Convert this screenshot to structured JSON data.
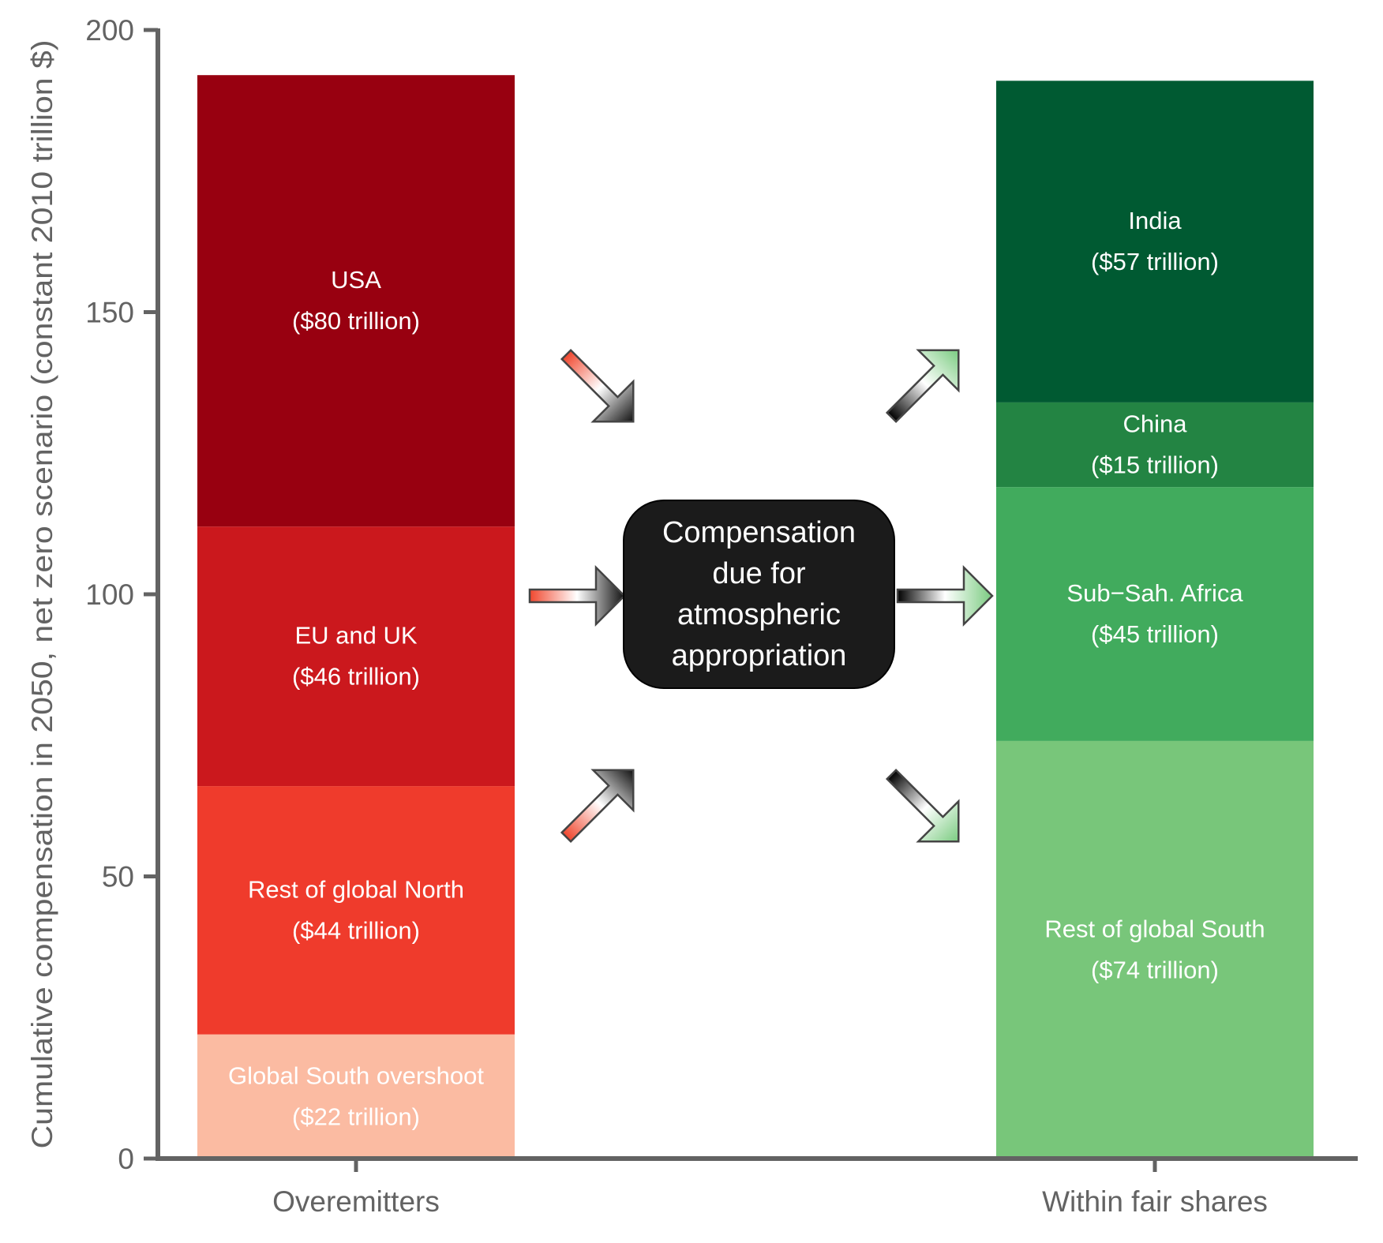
{
  "chart_data": {
    "type": "bar",
    "stacked": true,
    "ylabel": "Cumulative compensation in 2050, net zero scenario (constant 2010 trillion $)",
    "ylim": [
      0,
      200
    ],
    "yticks": [
      0,
      50,
      100,
      150,
      200
    ],
    "categories": [
      "Overemitters",
      "Within fair shares"
    ],
    "stacks": [
      {
        "category": "Overemitters",
        "segments": [
          {
            "name": "Global South overshoot",
            "value_label": "($22 trillion)",
            "value": 22,
            "color": "#fbbba2"
          },
          {
            "name": "Rest of global North",
            "value_label": "($44 trillion)",
            "value": 44,
            "color": "#ef3b2c"
          },
          {
            "name": "EU and UK",
            "value_label": "($46 trillion)",
            "value": 46,
            "color": "#cb181d"
          },
          {
            "name": "USA",
            "value_label": "($80 trillion)",
            "value": 80,
            "color": "#980010"
          }
        ]
      },
      {
        "category": "Within fair shares",
        "segments": [
          {
            "name": "Rest of global South",
            "value_label": "($74 trillion)",
            "value": 74,
            "color": "#78c67a"
          },
          {
            "name": "Sub−Sah. Africa",
            "value_label": "($45 trillion)",
            "value": 45,
            "color": "#41ab5d"
          },
          {
            "name": "China",
            "value_label": "($15 trillion)",
            "value": 15,
            "color": "#238443"
          },
          {
            "name": "India",
            "value_label": "($57 trillion)",
            "value": 57,
            "color": "#005a32"
          }
        ]
      }
    ],
    "annotation": "Compensation due for atmospheric appropriation"
  }
}
